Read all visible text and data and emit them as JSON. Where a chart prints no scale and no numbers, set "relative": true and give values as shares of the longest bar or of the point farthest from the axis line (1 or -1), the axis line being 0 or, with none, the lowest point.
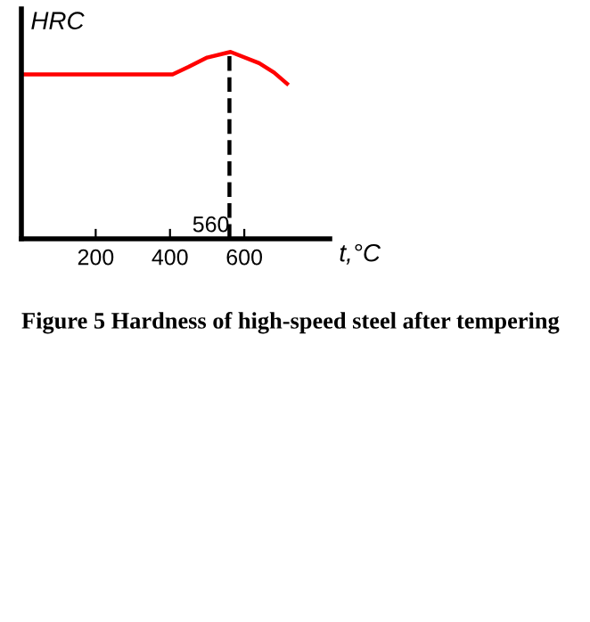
{
  "chart_data": {
    "type": "line",
    "relative": true,
    "xlabel": "t,°C",
    "ylabel": "HRC",
    "x": [
      10,
      200,
      407,
      450,
      500,
      563,
      640,
      680,
      715
    ],
    "series": [
      {
        "color": "#ff0000",
        "values": [
          0.88,
          0.88,
          0.88,
          0.92,
          0.97,
          1.0,
          0.94,
          0.89,
          0.83
        ]
      }
    ],
    "xlim": [
      0,
      830
    ],
    "xticks": [
      200,
      400,
      600
    ],
    "ref_lines": [
      {
        "axis": "x",
        "value": 560,
        "label": "560",
        "color": "#000000",
        "line_style": "dashed"
      }
    ],
    "annotations": [
      "Figure 5 Hardness of high-speed steel after tempering"
    ],
    "grid": false,
    "legend": false,
    "marker": "none",
    "line_style": "solid"
  }
}
